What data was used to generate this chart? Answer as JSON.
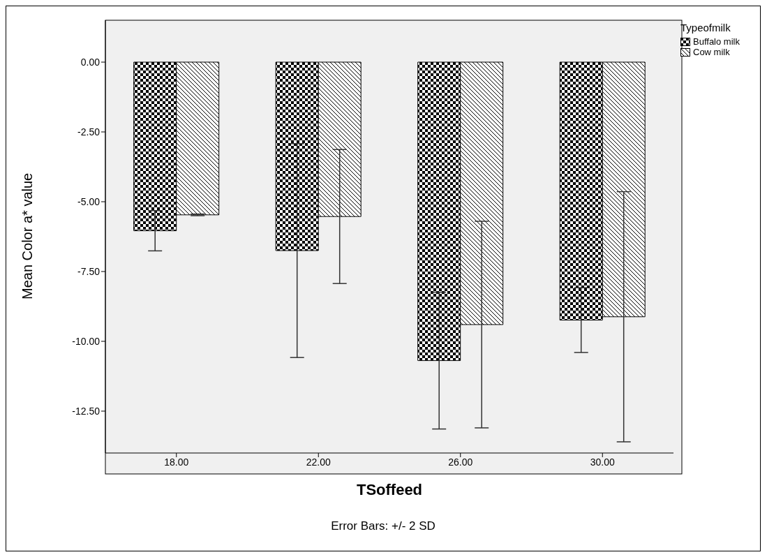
{
  "chart_data": {
    "type": "bar",
    "xlabel": "TSoffeed",
    "ylabel": "Mean Color a* value",
    "legend_title": "Typeofmilk",
    "categories": [
      "18.00",
      "22.00",
      "26.00",
      "30.00"
    ],
    "series": [
      {
        "name": "Buffalo milk",
        "color": "#000000",
        "values": [
          -6.04,
          -6.75,
          -10.69,
          -9.24
        ],
        "errors": [
          0.72,
          3.83,
          2.45,
          1.16
        ]
      },
      {
        "name": "Cow milk",
        "color": "#000000",
        "values": [
          -5.47,
          -5.53,
          -9.4,
          -9.12
        ],
        "errors": [
          0.03,
          2.4,
          3.7,
          4.48
        ]
      }
    ],
    "ylim": [
      -14,
      1.5
    ],
    "yticks": [
      {
        "value": 0,
        "label": "0.00"
      },
      {
        "value": -2.5,
        "label": "-2.50"
      },
      {
        "value": -5,
        "label": "-5.00"
      },
      {
        "value": -7.5,
        "label": "-7.50"
      },
      {
        "value": -10,
        "label": "-10.00"
      },
      {
        "value": -12.5,
        "label": "-12.50"
      }
    ],
    "grid": false,
    "legend": "top right",
    "annotations": [
      "Error Bars: +/- 2 SD"
    ]
  }
}
